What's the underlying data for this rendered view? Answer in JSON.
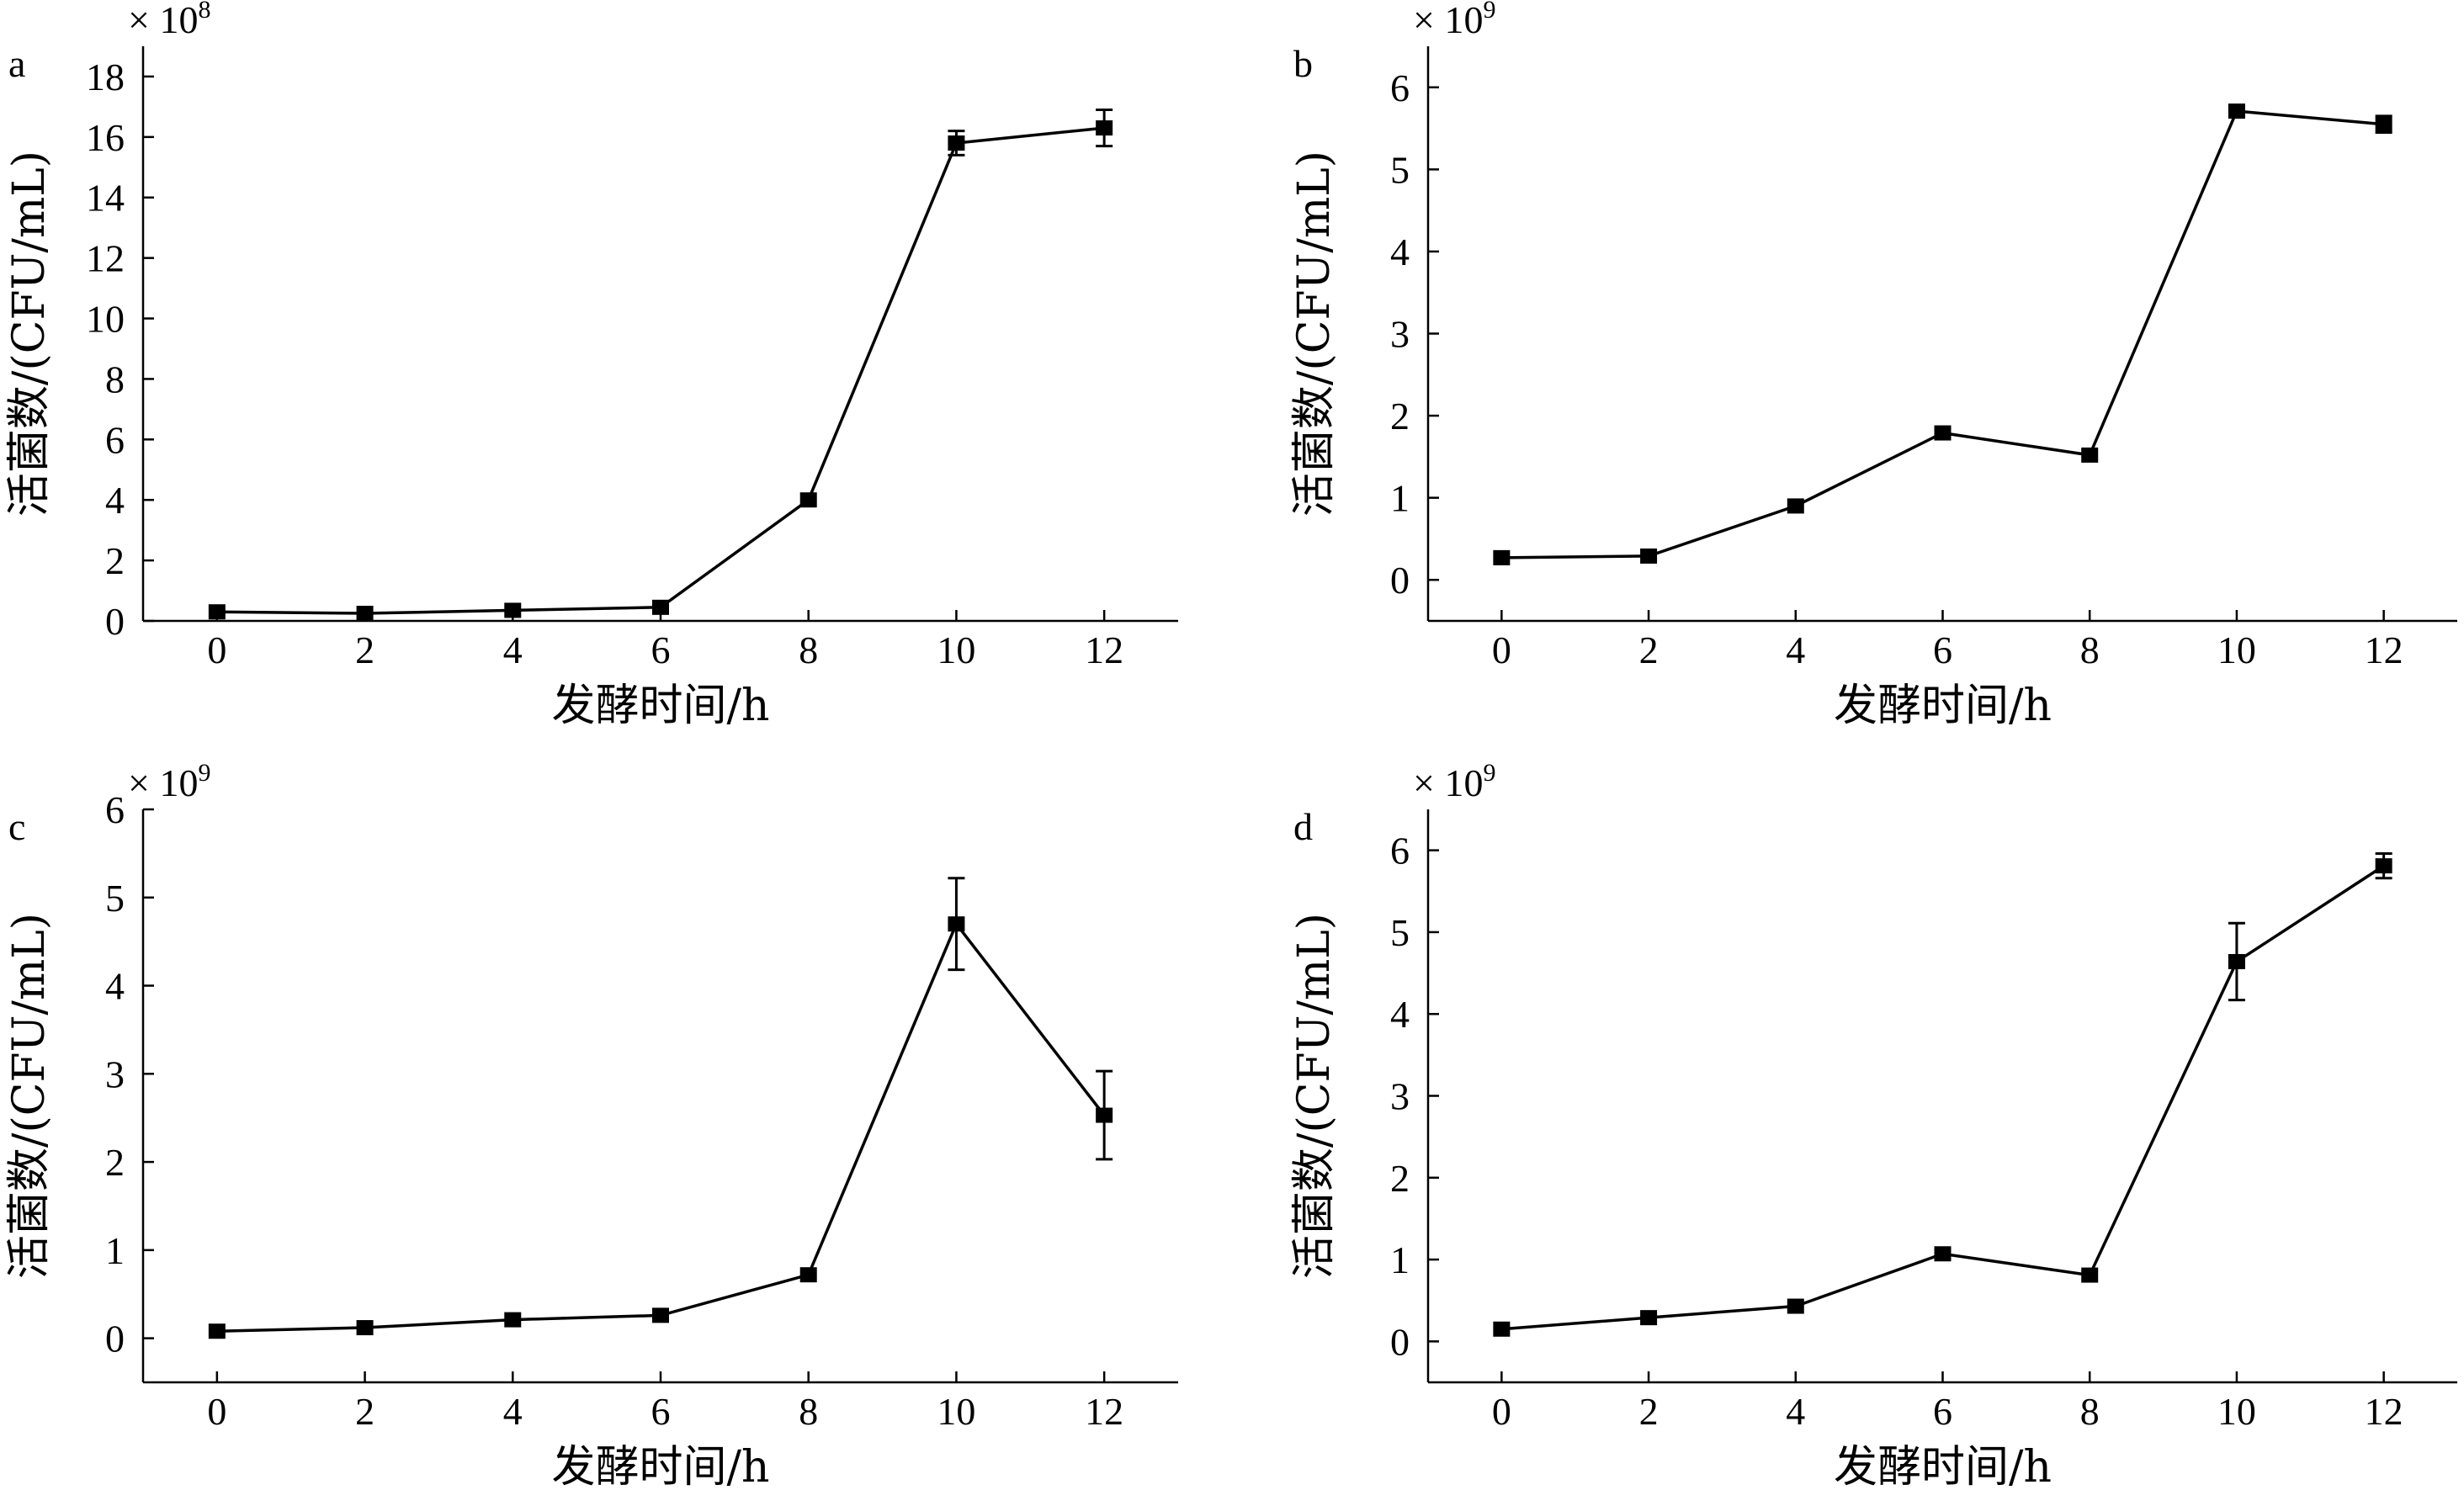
{
  "chart_data": [
    {
      "type": "line",
      "panel_label": "a",
      "multiplier": {
        "base": "× 10",
        "exponent": "8"
      },
      "xlabel": "发酵时间/h",
      "ylabel": "活菌数/(CFU/mL)",
      "xticks": [
        0,
        2,
        4,
        6,
        8,
        10,
        12
      ],
      "yticks": [
        0,
        2,
        4,
        6,
        8,
        10,
        12,
        14,
        16,
        18
      ],
      "xlim": [
        -1,
        13
      ],
      "ylim": [
        0,
        19
      ],
      "x": [
        0,
        2,
        4,
        6,
        8,
        10,
        12
      ],
      "y": [
        0.3,
        0.25,
        0.35,
        0.45,
        4.0,
        15.8,
        16.3
      ],
      "err": [
        0.1,
        0.1,
        0.1,
        0.1,
        0.1,
        0.4,
        0.6
      ]
    },
    {
      "type": "line",
      "panel_label": "b",
      "multiplier": {
        "base": "× 10",
        "exponent": "9"
      },
      "xlabel": "发酵时间/h",
      "ylabel": "活菌数/(CFU/mL)",
      "xticks": [
        0,
        2,
        4,
        6,
        8,
        10,
        12
      ],
      "yticks": [
        0,
        1,
        2,
        3,
        4,
        5,
        6
      ],
      "xlim": [
        -1,
        13
      ],
      "ylim": [
        -0.5,
        6.5
      ],
      "x": [
        0,
        2,
        4,
        6,
        8,
        10,
        12
      ],
      "y": [
        0.27,
        0.29,
        0.9,
        1.79,
        1.52,
        5.71,
        5.55
      ],
      "err": [
        0.03,
        0.03,
        0.04,
        0.05,
        0.05,
        0.08,
        0.1
      ]
    },
    {
      "type": "line",
      "panel_label": "c",
      "multiplier": {
        "base": "× 10",
        "exponent": "9"
      },
      "xlabel": "发酵时间/h",
      "ylabel": "活菌数/(CFU/mL)",
      "xticks": [
        0,
        2,
        4,
        6,
        8,
        10,
        12
      ],
      "yticks": [
        0,
        1,
        2,
        3,
        4,
        5,
        6
      ],
      "xlim": [
        -1,
        13
      ],
      "ylim": [
        -0.5,
        6
      ],
      "x": [
        0,
        2,
        4,
        6,
        8,
        10,
        12
      ],
      "y": [
        0.08,
        0.12,
        0.21,
        0.26,
        0.72,
        4.7,
        2.53
      ],
      "err": [
        0.03,
        0.03,
        0.03,
        0.04,
        0.05,
        0.52,
        0.5
      ]
    },
    {
      "type": "line",
      "panel_label": "d",
      "multiplier": {
        "base": "× 10",
        "exponent": "9"
      },
      "xlabel": "发酵时间/h",
      "ylabel": "活菌数/(CFU/mL)",
      "xticks": [
        0,
        2,
        4,
        6,
        8,
        10,
        12
      ],
      "yticks": [
        0,
        1,
        2,
        3,
        4,
        5,
        6
      ],
      "xlim": [
        -1,
        13
      ],
      "ylim": [
        -0.5,
        6.5
      ],
      "x": [
        0,
        2,
        4,
        6,
        8,
        10,
        12
      ],
      "y": [
        0.15,
        0.29,
        0.43,
        1.07,
        0.81,
        4.64,
        5.81
      ],
      "err": [
        0.03,
        0.03,
        0.04,
        0.09,
        0.04,
        0.47,
        0.15
      ]
    }
  ]
}
